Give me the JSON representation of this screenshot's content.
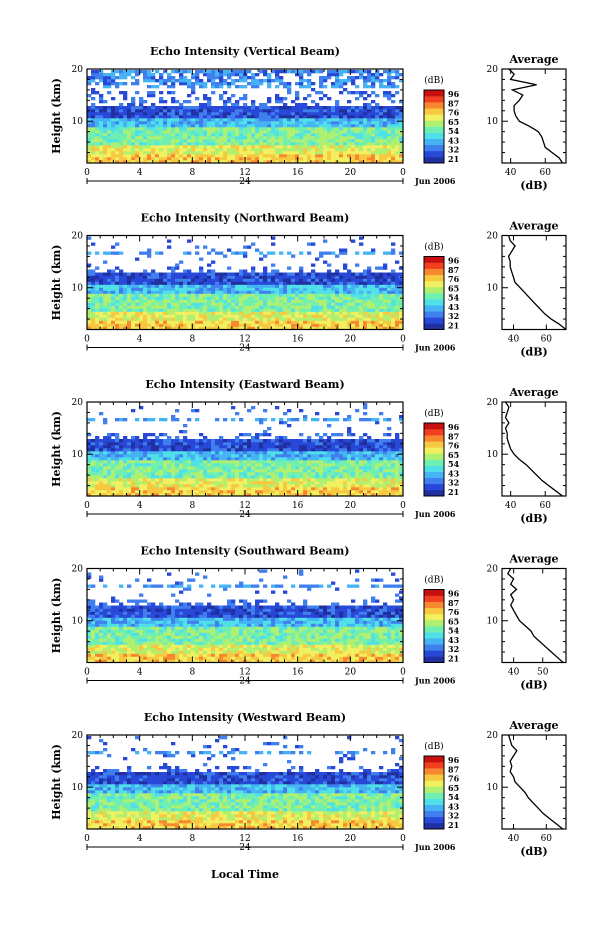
{
  "figure": {
    "ylabel": "Height (km)",
    "avg_title": "Average",
    "avg_xlabel": "(dB)",
    "colorbar_unit": "(dB)",
    "date_label": "Jun 2006",
    "xlabel": "Local Time",
    "colors": [
      "#2030a0",
      "#2848d8",
      "#3f7fee",
      "#46b4f4",
      "#50e0e8",
      "#70f0b0",
      "#b0f070",
      "#f0f060",
      "#f8c840",
      "#f88830",
      "#f04020",
      "#c81010"
    ]
  },
  "chart_data": [
    {
      "type": "heatmap",
      "title": "Echo Intensity (Vertical Beam)",
      "x_ticks": [
        "0",
        "4",
        "8",
        "12",
        "16",
        "20",
        "0"
      ],
      "x_sub_label": "24",
      "y_ticks": [
        "10",
        "20"
      ],
      "ylim": [
        2,
        20
      ],
      "colorbar_ticks": [
        "96",
        "87",
        "76",
        "65",
        "54",
        "43",
        "32",
        "21"
      ],
      "average_profile": {
        "x_ticks": [
          "40",
          "60"
        ],
        "xlim": [
          35,
          72
        ],
        "ylim": [
          2,
          20
        ],
        "height": [
          2,
          3,
          4,
          5,
          6,
          7,
          8,
          9,
          10,
          11,
          12,
          13,
          14,
          15,
          16,
          17,
          18,
          19,
          20
        ],
        "db": [
          70,
          68,
          64,
          60,
          59,
          58,
          56,
          51,
          45,
          43,
          42,
          42,
          45,
          47,
          41,
          55,
          40,
          42,
          39
        ]
      }
    },
    {
      "type": "heatmap",
      "title": "Echo Intensity (Northward Beam)",
      "x_ticks": [
        "0",
        "4",
        "8",
        "12",
        "16",
        "20",
        "0"
      ],
      "x_sub_label": "24",
      "y_ticks": [
        "10",
        "20"
      ],
      "ylim": [
        2,
        20
      ],
      "colorbar_ticks": [
        "96",
        "87",
        "76",
        "65",
        "54",
        "43",
        "32",
        "21"
      ],
      "average_profile": {
        "x_ticks": [
          "40",
          "60"
        ],
        "xlim": [
          33,
          72
        ],
        "ylim": [
          2,
          20
        ],
        "height": [
          2,
          3,
          4,
          5,
          6,
          7,
          8,
          9,
          10,
          11,
          12,
          13,
          14,
          15,
          16,
          17,
          18,
          19,
          20
        ],
        "db": [
          72,
          68,
          63,
          59,
          56,
          53,
          50,
          47,
          44,
          41,
          40,
          39,
          38,
          38,
          37,
          39,
          41,
          38,
          37
        ]
      }
    },
    {
      "type": "heatmap",
      "title": "Echo Intensity (Eastward Beam)",
      "x_ticks": [
        "0",
        "4",
        "8",
        "12",
        "16",
        "20",
        "0"
      ],
      "x_sub_label": "24",
      "y_ticks": [
        "10",
        "20"
      ],
      "ylim": [
        2,
        20
      ],
      "colorbar_ticks": [
        "96",
        "87",
        "76",
        "65",
        "54",
        "43",
        "32",
        "21"
      ],
      "average_profile": {
        "x_ticks": [
          "40",
          "60"
        ],
        "xlim": [
          35,
          72
        ],
        "ylim": [
          2,
          20
        ],
        "height": [
          2,
          3,
          4,
          5,
          6,
          7,
          8,
          9,
          10,
          11,
          12,
          13,
          14,
          15,
          16,
          17,
          18,
          19,
          20
        ],
        "db": [
          70,
          66,
          62,
          58,
          55,
          52,
          49,
          45,
          42,
          40,
          39,
          38,
          38,
          37,
          39,
          37,
          38,
          39,
          37
        ]
      }
    },
    {
      "type": "heatmap",
      "title": "Echo Intensity (Southward Beam)",
      "x_ticks": [
        "0",
        "4",
        "8",
        "12",
        "16",
        "20",
        "0"
      ],
      "x_sub_label": "24",
      "y_ticks": [
        "10",
        "20"
      ],
      "ylim": [
        2,
        20
      ],
      "colorbar_ticks": [
        "96",
        "87",
        "76",
        "65",
        "54",
        "43",
        "32",
        "21"
      ],
      "average_profile": {
        "x_ticks": [
          "40",
          "50"
        ],
        "xlim": [
          36,
          58
        ],
        "ylim": [
          2,
          20
        ],
        "height": [
          2,
          3,
          4,
          5,
          6,
          7,
          8,
          9,
          10,
          11,
          12,
          13,
          14,
          15,
          16,
          17,
          18,
          19,
          20
        ],
        "db": [
          57,
          55,
          53,
          51,
          49,
          47,
          46,
          44,
          42,
          41,
          40,
          39,
          40,
          39,
          41,
          39,
          40,
          38,
          39
        ]
      }
    },
    {
      "type": "heatmap",
      "title": "Echo Intensity (Westward Beam)",
      "x_ticks": [
        "0",
        "4",
        "8",
        "12",
        "16",
        "20",
        "0"
      ],
      "x_sub_label": "24",
      "y_ticks": [
        "10",
        "20"
      ],
      "ylim": [
        2,
        20
      ],
      "colorbar_ticks": [
        "96",
        "87",
        "76",
        "65",
        "54",
        "43",
        "32",
        "21"
      ],
      "average_profile": {
        "x_ticks": [
          "40",
          "60"
        ],
        "xlim": [
          33,
          72
        ],
        "ylim": [
          2,
          20
        ],
        "height": [
          2,
          3,
          4,
          5,
          6,
          7,
          8,
          9,
          10,
          11,
          12,
          13,
          14,
          15,
          16,
          17,
          18,
          19,
          20
        ],
        "db": [
          70,
          66,
          62,
          58,
          55,
          52,
          49,
          47,
          44,
          41,
          40,
          38,
          39,
          38,
          40,
          42,
          39,
          38,
          37
        ]
      }
    }
  ]
}
